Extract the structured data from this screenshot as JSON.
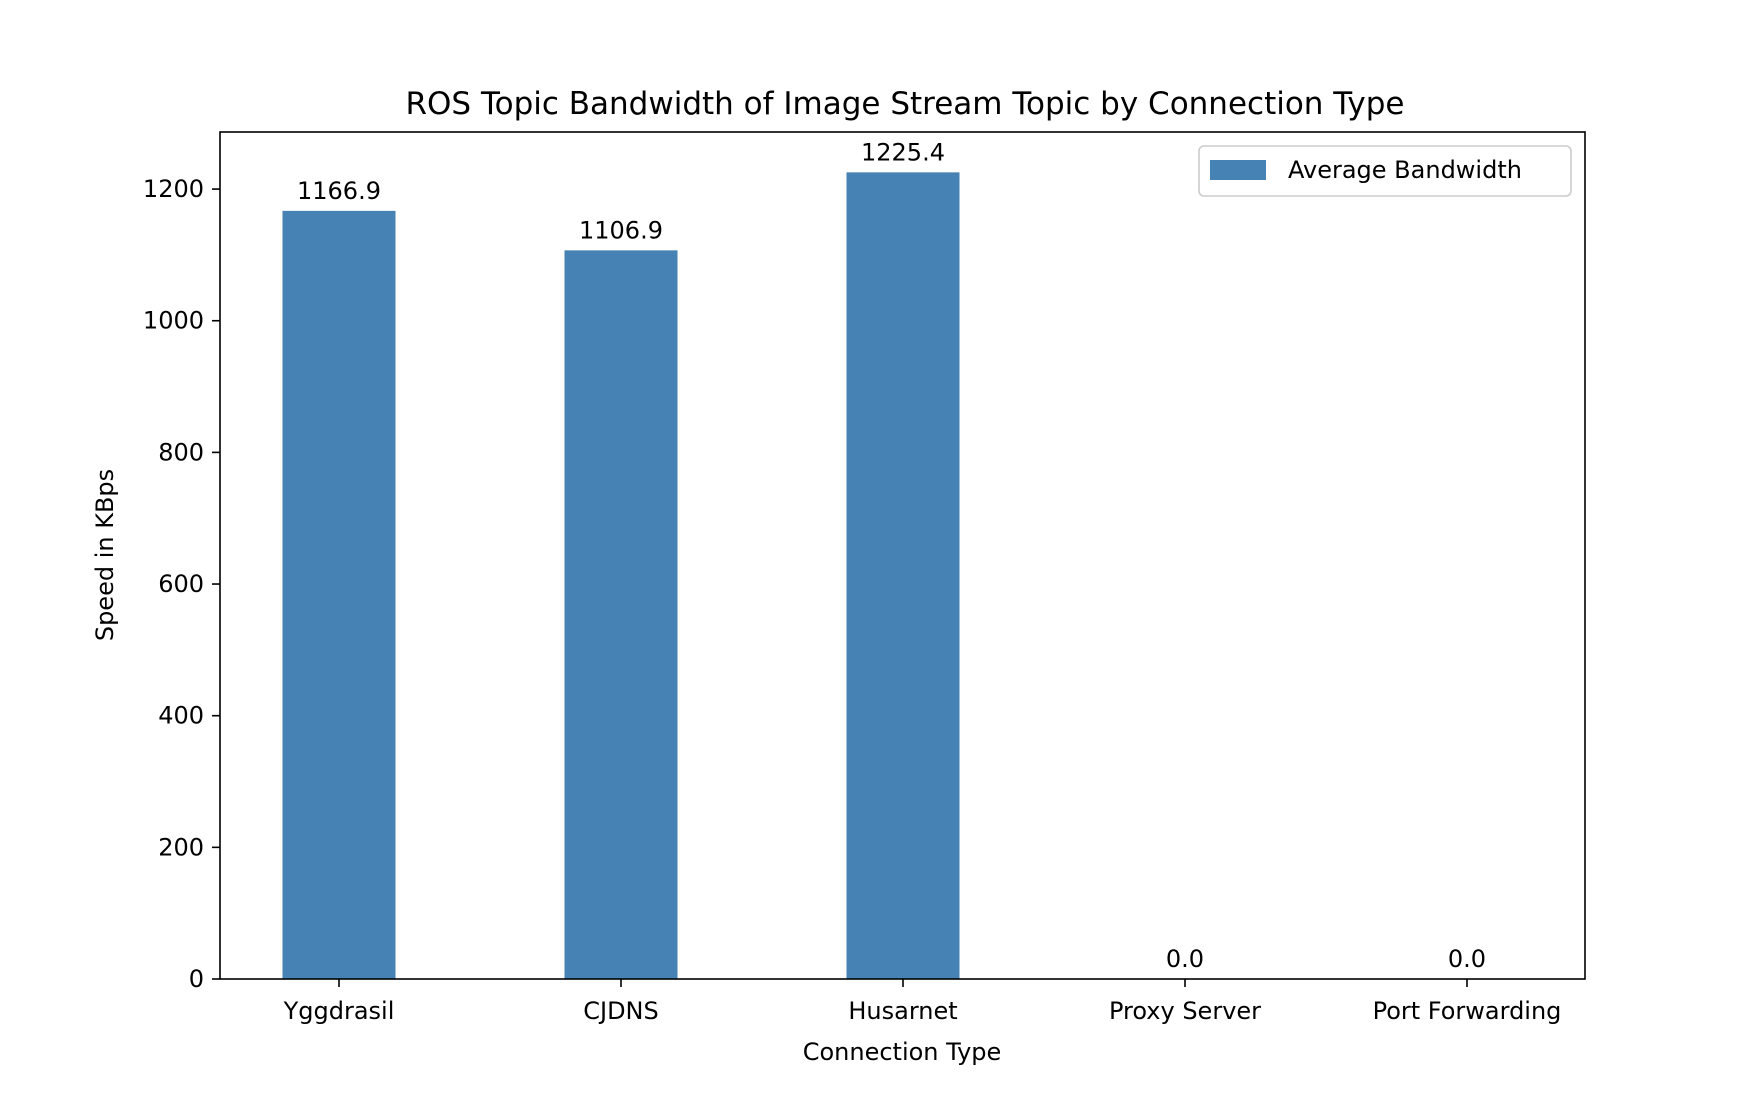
{
  "chart_data": {
    "type": "bar",
    "title": "ROS Topic Bandwidth of Image Stream Topic by Connection Type",
    "xlabel": "Connection Type",
    "ylabel": "Speed in KBps",
    "categories": [
      "Yggdrasil",
      "CJDNS",
      "Husarnet",
      "Proxy Server",
      "Port Forwarding"
    ],
    "series": [
      {
        "name": "Average Bandwidth",
        "values": [
          1166.9,
          1106.9,
          1225.4,
          0.0,
          0.0
        ],
        "color": "#4682b4"
      }
    ],
    "value_labels": [
      "1166.9",
      "1106.9",
      "1225.4",
      "0.0",
      "0.0"
    ],
    "y_ticks": [
      0,
      200,
      400,
      600,
      800,
      1000,
      1200
    ],
    "ylim": [
      0,
      1286.7
    ],
    "grid": false,
    "legend_position": "top-right"
  }
}
